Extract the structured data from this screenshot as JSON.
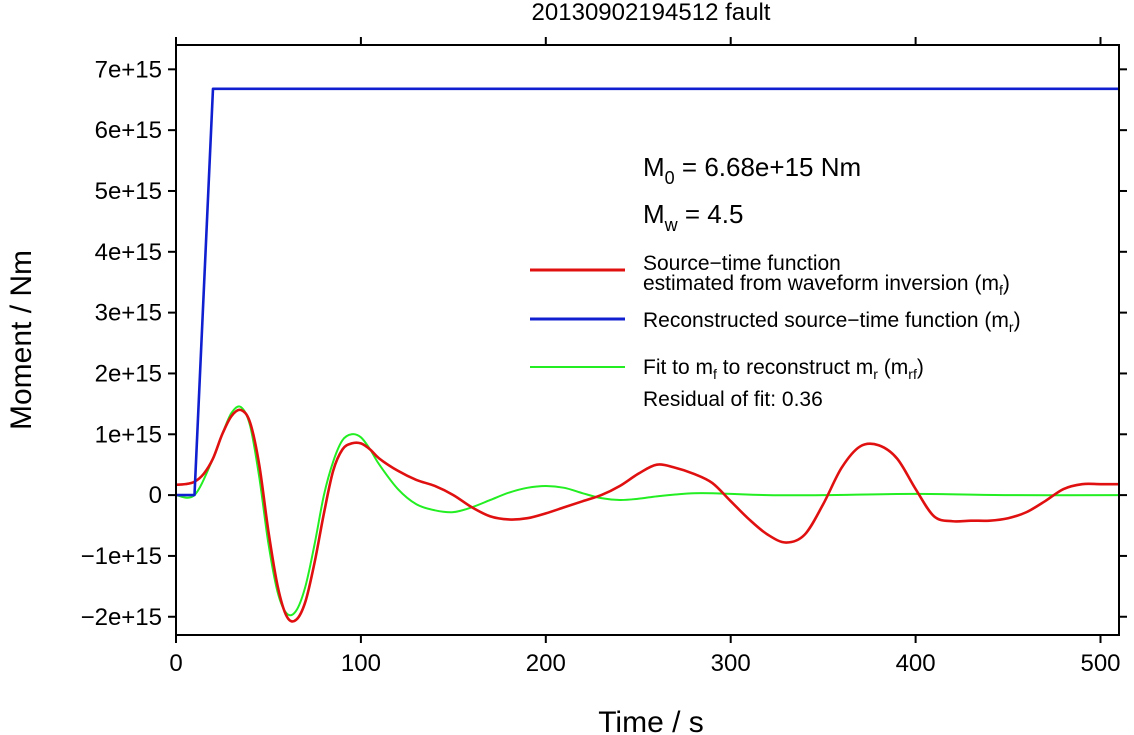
{
  "chart_data": {
    "type": "line",
    "title": "20130902194512 fault",
    "xlabel": "Time / s",
    "ylabel": "Moment / Nm",
    "xlim": [
      0,
      510
    ],
    "ylim": [
      -2300000000000000.0,
      7400000000000000.0
    ],
    "x_ticks": [
      0,
      100,
      200,
      300,
      400,
      500
    ],
    "x_tick_labels": [
      "0",
      "100",
      "200",
      "300",
      "400",
      "500"
    ],
    "y_ticks": [
      -2000000000000000.0,
      -1000000000000000.0,
      0,
      1000000000000000.0,
      2000000000000000.0,
      3000000000000000.0,
      4000000000000000.0,
      5000000000000000.0,
      6000000000000000.0,
      7000000000000000.0
    ],
    "y_tick_labels": [
      "−2e+15",
      "−1e+15",
      "0",
      "1e+15",
      "2e+15",
      "3e+15",
      "4e+15",
      "5e+15",
      "6e+15",
      "7e+15"
    ],
    "grid": false,
    "legend_placement": "right",
    "annotations": {
      "m0": {
        "main": "M",
        "sub": "0",
        "rest": " = 6.68e+15 Nm"
      },
      "mw": {
        "main": "M",
        "sub": "w",
        "rest": " = 4.5"
      },
      "residual": "Residual of fit: 0.36"
    },
    "series": [
      {
        "name": "estimated from waveform inversion",
        "legend_line1": "Source−time function",
        "legend_line2": "estimated from waveform inversion (m",
        "legend_sub": "f",
        "legend_end": ")",
        "color": "#e01010",
        "x": [
          0,
          5,
          10,
          15,
          20,
          25,
          30,
          35,
          40,
          45,
          50,
          55,
          60,
          65,
          70,
          75,
          80,
          85,
          90,
          95,
          100,
          105,
          110,
          120,
          130,
          140,
          150,
          160,
          170,
          180,
          190,
          200,
          210,
          220,
          230,
          240,
          250,
          260,
          270,
          280,
          290,
          300,
          310,
          320,
          330,
          340,
          350,
          360,
          370,
          380,
          390,
          400,
          410,
          420,
          430,
          440,
          450,
          460,
          470,
          480,
          490,
          500,
          510
        ],
        "y": [
          170000000000000.0,
          180000000000000.0,
          220000000000000.0,
          350000000000000.0,
          600000000000000.0,
          1000000000000000.0,
          1300000000000000.0,
          1400000000000000.0,
          1200000000000000.0,
          500000000000000.0,
          -600000000000000.0,
          -1500000000000000.0,
          -2000000000000000.0,
          -2050000000000000.0,
          -1750000000000000.0,
          -1100000000000000.0,
          -300000000000000.0,
          400000000000000.0,
          750000000000000.0,
          850000000000000.0,
          850000000000000.0,
          750000000000000.0,
          600000000000000.0,
          400000000000000.0,
          250000000000000.0,
          150000000000000.0,
          0,
          -200000000000000.0,
          -350000000000000.0,
          -400000000000000.0,
          -380000000000000.0,
          -300000000000000.0,
          -200000000000000.0,
          -100000000000000.0,
          0,
          150000000000000.0,
          350000000000000.0,
          500000000000000.0,
          450000000000000.0,
          350000000000000.0,
          200000000000000.0,
          -100000000000000.0,
          -400000000000000.0,
          -650000000000000.0,
          -780000000000000.0,
          -650000000000000.0,
          -150000000000000.0,
          450000000000000.0,
          800000000000000.0,
          820000000000000.0,
          600000000000000.0,
          100000000000000.0,
          -350000000000000.0,
          -430000000000000.0,
          -420000000000000.0,
          -420000000000000.0,
          -380000000000000.0,
          -280000000000000.0,
          -100000000000000.0,
          100000000000000.0,
          180000000000000.0,
          180000000000000.0,
          180000000000000.0
        ]
      },
      {
        "name": "Reconstructed source−time function",
        "legend_line1": "Reconstructed source−time function (m",
        "legend_sub": "r",
        "legend_end": ")",
        "color": "#1020d0",
        "x": [
          0,
          10,
          20,
          510
        ],
        "y": [
          0,
          0,
          6680000000000000.0,
          6680000000000000.0
        ]
      },
      {
        "name": "Fit to mf to reconstruct mr",
        "legend_line1": "Fit to m",
        "legend_sub1": "f",
        "legend_mid": " to reconstruct m",
        "legend_sub2": "r",
        "legend_mid2": " (m",
        "legend_sub3": "rf",
        "legend_end": ")",
        "color": "#22ee22",
        "x": [
          0,
          10,
          20,
          25,
          30,
          35,
          40,
          45,
          50,
          55,
          60,
          65,
          70,
          75,
          80,
          85,
          90,
          95,
          100,
          105,
          110,
          120,
          130,
          140,
          150,
          160,
          170,
          180,
          190,
          200,
          210,
          220,
          230,
          240,
          250,
          260,
          270,
          280,
          290,
          300,
          320,
          350,
          400,
          450,
          510
        ],
        "y": [
          0,
          0,
          600000000000000.0,
          1000000000000000.0,
          1350000000000000.0,
          1450000000000000.0,
          1150000000000000.0,
          300000000000000.0,
          -800000000000000.0,
          -1600000000000000.0,
          -1950000000000000.0,
          -1900000000000000.0,
          -1500000000000000.0,
          -800000000000000.0,
          0,
          550000000000000.0,
          900000000000000.0,
          1000000000000000.0,
          950000000000000.0,
          750000000000000.0,
          500000000000000.0,
          100000000000000.0,
          -150000000000000.0,
          -250000000000000.0,
          -280000000000000.0,
          -200000000000000.0,
          -80000000000000.0,
          40000000000000.0,
          120000000000000.0,
          150000000000000.0,
          120000000000000.0,
          30000000000000.0,
          -50000000000000.0,
          -80000000000000.0,
          -60000000000000.0,
          -20000000000000.0,
          10000000000000.0,
          30000000000000.0,
          30000000000000.0,
          20000000000000.0,
          0,
          0,
          20000000000000.0,
          0,
          0
        ]
      }
    ]
  }
}
